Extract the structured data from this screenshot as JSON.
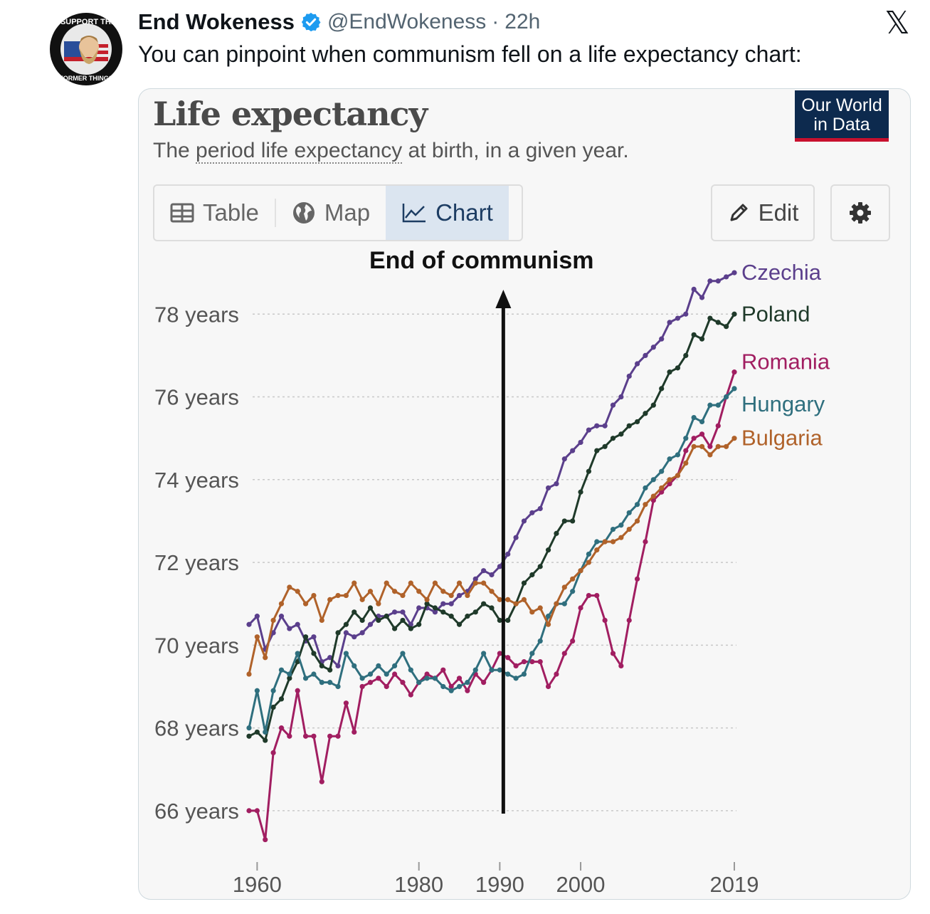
{
  "tweet": {
    "author_name": "End Wokeness",
    "handle": "@EndWokeness",
    "separator": "·",
    "time": "22h",
    "text": "You can pinpoint when communism fell on a life expectancy chart:",
    "avatar_text_top": "I SUPPORT THE",
    "avatar_text_bottom": "FORMER THINGS"
  },
  "card": {
    "title": "Life expectancy",
    "subtitle_pre": "The ",
    "subtitle_link": "period life expectancy",
    "subtitle_post": " at birth, in a given year.",
    "logo_line1": "Our World",
    "logo_line2": "in Data",
    "tabs": [
      {
        "label": "Table",
        "icon": "table-icon"
      },
      {
        "label": "Map",
        "icon": "globe-icon"
      },
      {
        "label": "Chart",
        "icon": "line-chart-icon"
      }
    ],
    "edit_label": "Edit",
    "annotation": "End of communism"
  },
  "colors": {
    "Czechia": "#5b3f8c",
    "Poland": "#1f3a2a",
    "Romania": "#a11e61",
    "Hungary": "#2f6f7e",
    "Bulgaria": "#b0622a",
    "grid": "#c8c8c8",
    "axis_text": "#555555"
  },
  "chart_data": {
    "type": "line",
    "title": "Life expectancy",
    "subtitle": "The period life expectancy at birth, in a given year.",
    "xlabel": "",
    "ylabel": "",
    "xlim": [
      1959,
      2019
    ],
    "ylim": [
      65,
      80
    ],
    "x_ticks": [
      1960,
      1980,
      1990,
      2000,
      2019
    ],
    "y_ticks": [
      66,
      68,
      70,
      72,
      74,
      76,
      78
    ],
    "y_tick_labels": [
      "66 years",
      "68 years",
      "70 years",
      "72 years",
      "74 years",
      "76 years",
      "78 years"
    ],
    "annotation": {
      "text": "End of communism",
      "x": 1990
    },
    "x": [
      1959,
      1960,
      1961,
      1962,
      1963,
      1964,
      1965,
      1966,
      1967,
      1968,
      1969,
      1970,
      1971,
      1972,
      1973,
      1974,
      1975,
      1976,
      1977,
      1978,
      1979,
      1980,
      1981,
      1982,
      1983,
      1984,
      1985,
      1986,
      1987,
      1988,
      1989,
      1990,
      1991,
      1992,
      1993,
      1994,
      1995,
      1996,
      1997,
      1998,
      1999,
      2000,
      2001,
      2002,
      2003,
      2004,
      2005,
      2006,
      2007,
      2008,
      2009,
      2010,
      2011,
      2012,
      2013,
      2014,
      2015,
      2016,
      2017,
      2018,
      2019
    ],
    "series": [
      {
        "name": "Czechia",
        "values": [
          70.5,
          70.7,
          69.9,
          70.3,
          70.7,
          70.4,
          70.5,
          70.1,
          70.2,
          69.6,
          69.7,
          69.5,
          70.3,
          70.2,
          70.3,
          70.5,
          70.7,
          70.7,
          70.8,
          70.8,
          70.5,
          70.9,
          70.9,
          70.8,
          71.0,
          71.0,
          71.2,
          71.3,
          71.6,
          71.8,
          71.7,
          71.9,
          72.2,
          72.6,
          73.0,
          73.2,
          73.3,
          73.8,
          73.9,
          74.5,
          74.7,
          74.9,
          75.2,
          75.3,
          75.3,
          75.8,
          76.0,
          76.5,
          76.8,
          77.0,
          77.2,
          77.4,
          77.8,
          77.9,
          78.0,
          78.6,
          78.4,
          78.8,
          78.8,
          78.9,
          79.0
        ]
      },
      {
        "name": "Poland",
        "values": [
          67.8,
          67.9,
          67.7,
          68.5,
          68.7,
          69.2,
          69.6,
          70.2,
          69.8,
          69.5,
          69.4,
          70.3,
          70.5,
          70.8,
          70.6,
          70.9,
          70.6,
          70.7,
          70.4,
          70.6,
          70.4,
          70.5,
          71.0,
          70.9,
          70.8,
          70.7,
          70.5,
          70.7,
          70.8,
          71.0,
          70.9,
          70.6,
          70.6,
          71.0,
          71.5,
          71.7,
          71.9,
          72.3,
          72.7,
          73.0,
          73.0,
          73.7,
          74.2,
          74.7,
          74.8,
          75.0,
          75.1,
          75.3,
          75.4,
          75.6,
          75.8,
          76.2,
          76.6,
          76.7,
          77.0,
          77.5,
          77.4,
          77.9,
          77.8,
          77.7,
          78.0
        ]
      },
      {
        "name": "Romania",
        "values": [
          66.0,
          66.0,
          65.3,
          67.4,
          68.0,
          67.8,
          68.9,
          67.8,
          67.8,
          66.7,
          67.8,
          67.8,
          68.6,
          67.9,
          69.0,
          69.1,
          69.2,
          69.0,
          69.3,
          69.1,
          68.8,
          69.1,
          69.3,
          69.2,
          69.4,
          69.0,
          69.2,
          68.9,
          69.3,
          69.1,
          69.4,
          69.8,
          69.7,
          69.5,
          69.6,
          69.6,
          69.6,
          69.0,
          69.3,
          69.8,
          70.1,
          70.9,
          71.2,
          71.2,
          70.6,
          69.8,
          69.5,
          70.6,
          71.6,
          72.5,
          73.5,
          73.7,
          73.9,
          74.1,
          74.7,
          75.0,
          75.1,
          74.8,
          75.3,
          76.0,
          76.6
        ]
      },
      {
        "name": "Hungary",
        "values": [
          68.0,
          68.9,
          67.9,
          68.9,
          69.4,
          69.3,
          69.8,
          69.2,
          69.3,
          69.1,
          69.1,
          69.0,
          69.8,
          69.5,
          69.2,
          69.3,
          69.5,
          69.3,
          69.5,
          69.8,
          69.4,
          69.1,
          69.2,
          69.2,
          69.0,
          68.9,
          69.0,
          69.1,
          69.4,
          69.8,
          69.4,
          69.4,
          69.3,
          69.2,
          69.3,
          69.8,
          70.1,
          70.7,
          71.0,
          71.0,
          71.3,
          71.8,
          72.2,
          72.5,
          72.5,
          72.8,
          72.9,
          73.2,
          73.4,
          73.8,
          74.0,
          74.2,
          74.5,
          74.6,
          75.0,
          75.5,
          75.4,
          75.8,
          75.8,
          76.0,
          76.2
        ]
      },
      {
        "name": "Bulgaria",
        "values": [
          69.3,
          70.2,
          69.7,
          70.6,
          71.0,
          71.4,
          71.3,
          71.0,
          71.2,
          70.6,
          71.1,
          71.2,
          71.2,
          71.5,
          71.1,
          71.3,
          71.0,
          71.5,
          71.3,
          71.2,
          71.5,
          71.3,
          71.1,
          71.5,
          71.3,
          71.2,
          71.5,
          71.2,
          71.5,
          71.5,
          71.3,
          71.1,
          71.1,
          71.0,
          71.1,
          70.8,
          70.9,
          70.5,
          71.0,
          71.4,
          71.6,
          71.8,
          72.0,
          72.3,
          72.5,
          72.5,
          72.6,
          72.8,
          73.0,
          73.4,
          73.6,
          73.8,
          74.0,
          74.1,
          74.4,
          74.8,
          74.8,
          74.6,
          74.8,
          74.8,
          75.0
        ]
      }
    ]
  }
}
